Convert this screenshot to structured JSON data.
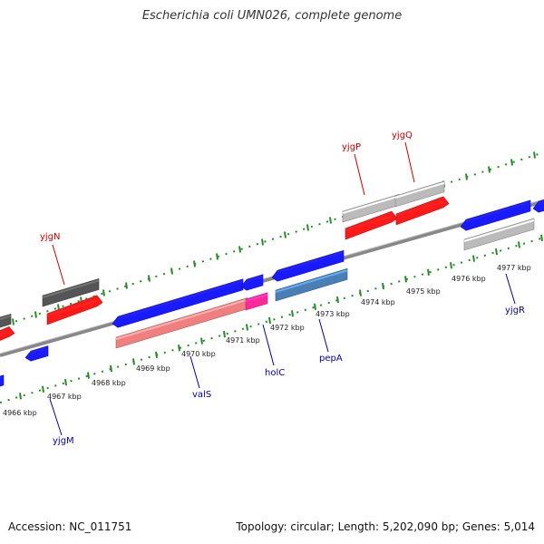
{
  "title": "Escherichia coli UMN026, complete genome",
  "footer": {
    "accession": "Accession: NC_011751",
    "topology": "Topology: circular; Length: 5,202,090 bp; Genes: 5,014"
  },
  "colors": {
    "forward_gene": "#ff1a1a",
    "reverse_gene": "#1a1aff",
    "pseudo_dark": "#555555",
    "pseudo_light": "#bbbbbb",
    "rna_pink": "#f08080",
    "magenta": "#ff2a9a",
    "steel": "#4a7fb5",
    "tick": "#2a8a2a",
    "backbone": "#808080",
    "label_red": "#cc0000",
    "label_blue": "#0000aa"
  },
  "scale_labels": [
    "4966 kbp",
    "4967 kbp",
    "4968 kbp",
    "4969 kbp",
    "4970 kbp",
    "4971 kbp",
    "4972 kbp",
    "4973 kbp",
    "4974 kbp",
    "4975 kbp",
    "4976 kbp",
    "4977 kbp"
  ],
  "gene_labels": {
    "yjgN": "yjgN",
    "yjgP": "yjgP",
    "yjgQ": "yjgQ",
    "yjgM": "yjgM",
    "valS": "valS",
    "holC": "holC",
    "pepA": "pepA",
    "yjgR": "yjgR"
  }
}
